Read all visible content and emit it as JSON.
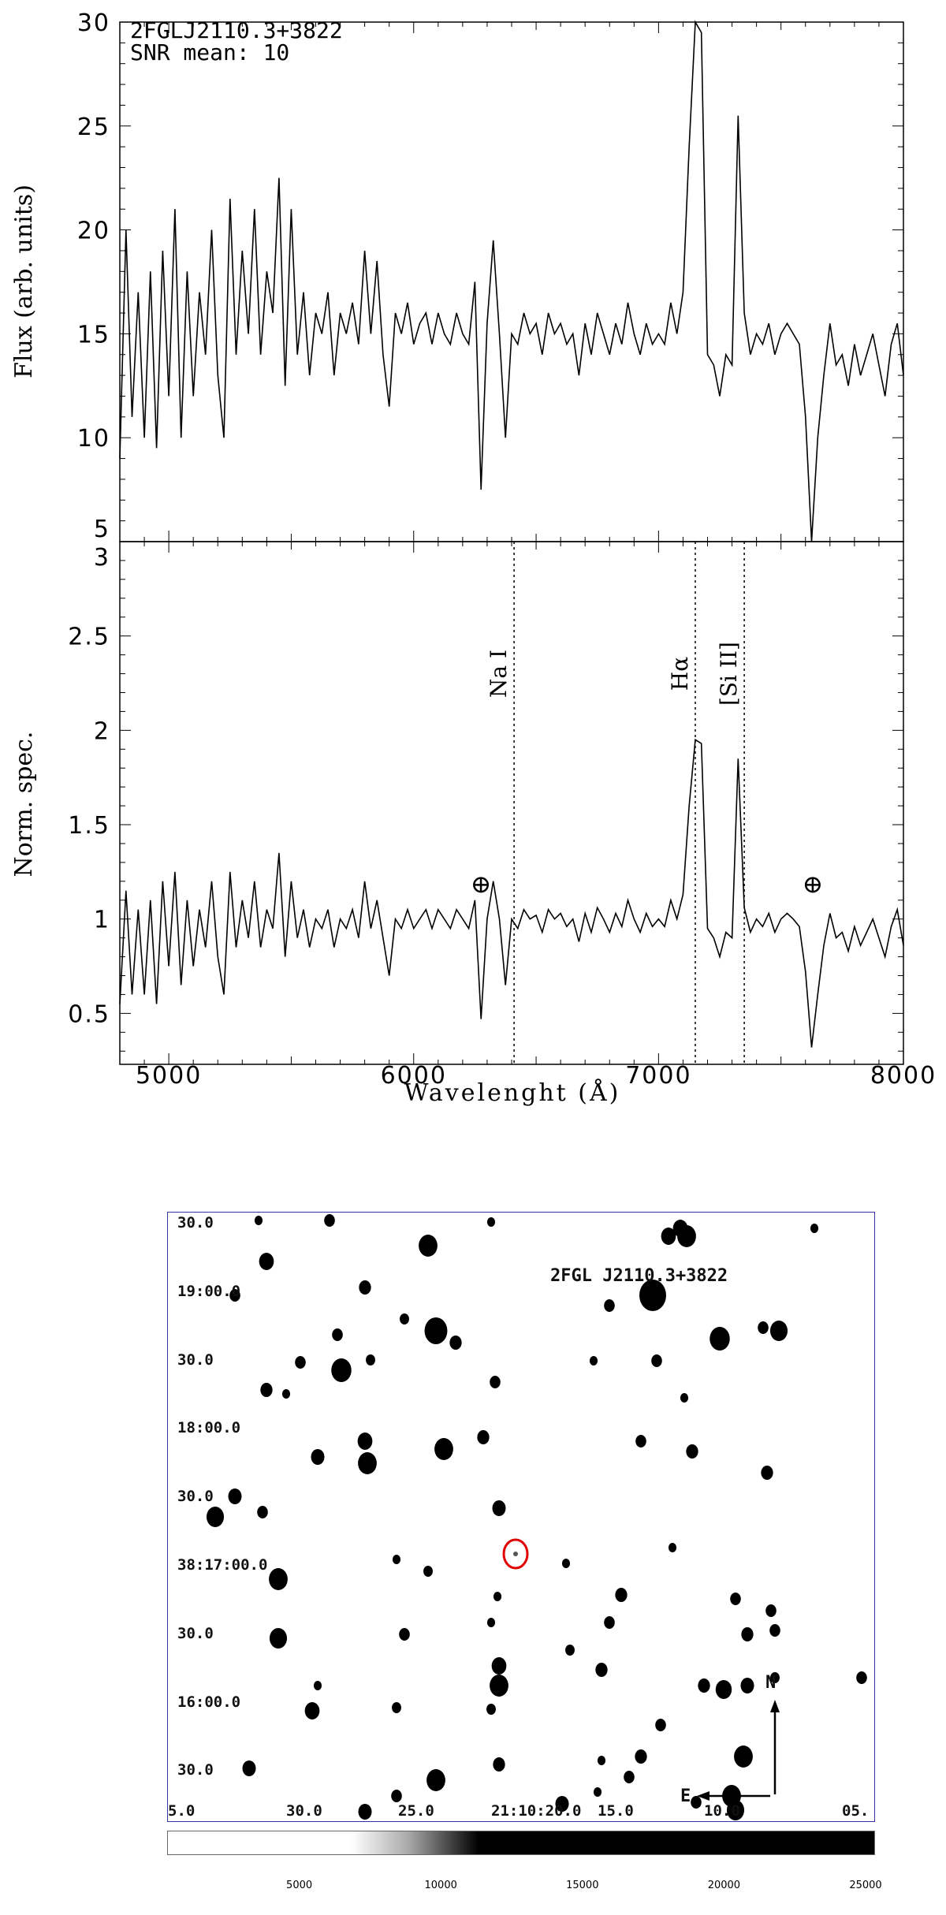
{
  "chart_data": [
    {
      "type": "line",
      "panel": "top",
      "annotations": [
        "2FGLJ2110.3+3822",
        "SNR mean: 10"
      ],
      "ylabel": "Flux (arb. units)",
      "xlabel": "",
      "xlim": [
        4800,
        8000
      ],
      "ylim": [
        5,
        30
      ],
      "yticks": [
        "5",
        "10",
        "15",
        "20",
        "25",
        "30"
      ],
      "x_start": 4800,
      "x_step": 25,
      "values": [
        9,
        20,
        11,
        17,
        10,
        18,
        9.5,
        19,
        12,
        21,
        10,
        18,
        12,
        17,
        14,
        20,
        13,
        10,
        21.5,
        14,
        19,
        15,
        21,
        14,
        18,
        16,
        22.5,
        12.5,
        21,
        14,
        17,
        13,
        16,
        15,
        17,
        13,
        16,
        15,
        16.5,
        14.5,
        19,
        15,
        18.5,
        14,
        11.5,
        16,
        15,
        16.5,
        14.5,
        15.5,
        16,
        14.5,
        16,
        15,
        14.5,
        16,
        15,
        14.5,
        17.5,
        7.5,
        15.5,
        19.5,
        15,
        10,
        15,
        14.5,
        16,
        15,
        15.5,
        14,
        16,
        15,
        15.5,
        14.5,
        15,
        13,
        15.5,
        14,
        16,
        15,
        14,
        15.5,
        14.5,
        16.5,
        15,
        14,
        15.5,
        14.5,
        15,
        14.5,
        16.5,
        15,
        17,
        24,
        30,
        29.5,
        14,
        13.5,
        12,
        14,
        13.5,
        25.5,
        16,
        14,
        15,
        14.5,
        15.5,
        14,
        15,
        15.5,
        15,
        14.5,
        11,
        5,
        10,
        13,
        15.5,
        13.5,
        14,
        12.5,
        14.5,
        13,
        14,
        15,
        13.5,
        12,
        14.5,
        15.5,
        13
      ]
    },
    {
      "type": "line",
      "panel": "bottom",
      "ylabel": "Norm. spec.",
      "xlabel": "Wavelenght (Å)",
      "xlim": [
        4800,
        8000
      ],
      "ylim": [
        0.23,
        3
      ],
      "xticks": [
        "5000",
        "6000",
        "7000",
        "8000"
      ],
      "yticks": [
        "0.5",
        "1",
        "1.5",
        "2",
        "2.5",
        "3"
      ],
      "x_start": 4800,
      "x_step": 25,
      "values": [
        0.55,
        1.15,
        0.6,
        1.05,
        0.6,
        1.1,
        0.55,
        1.2,
        0.75,
        1.25,
        0.65,
        1.1,
        0.75,
        1.05,
        0.85,
        1.2,
        0.8,
        0.6,
        1.25,
        0.85,
        1.1,
        0.9,
        1.2,
        0.85,
        1.05,
        0.95,
        1.35,
        0.8,
        1.2,
        0.9,
        1.05,
        0.85,
        1.0,
        0.95,
        1.05,
        0.85,
        1.0,
        0.95,
        1.05,
        0.9,
        1.2,
        0.95,
        1.1,
        0.9,
        0.7,
        1.0,
        0.95,
        1.05,
        0.95,
        1.0,
        1.05,
        0.95,
        1.05,
        1.0,
        0.95,
        1.05,
        1.0,
        0.95,
        1.1,
        0.47,
        1.0,
        1.2,
        1.0,
        0.65,
        1.0,
        0.95,
        1.05,
        1.0,
        1.02,
        0.93,
        1.05,
        1.0,
        1.03,
        0.96,
        1.0,
        0.88,
        1.03,
        0.93,
        1.06,
        1.0,
        0.93,
        1.03,
        0.96,
        1.1,
        1.0,
        0.93,
        1.03,
        0.96,
        1.0,
        0.96,
        1.1,
        1.0,
        1.13,
        1.6,
        1.95,
        1.93,
        0.95,
        0.9,
        0.8,
        0.93,
        0.9,
        1.85,
        1.06,
        0.93,
        1.0,
        0.96,
        1.03,
        0.93,
        1.0,
        1.03,
        1.0,
        0.96,
        0.72,
        0.32,
        0.6,
        0.86,
        1.03,
        0.9,
        0.93,
        0.83,
        0.96,
        0.86,
        0.93,
        1.0,
        0.9,
        0.8,
        0.96,
        1.05,
        0.86
      ],
      "lines": [
        {
          "label": "Na I",
          "wavelength": 6410
        },
        {
          "label": "Hα",
          "wavelength": 7150
        },
        {
          "label": "[Si II]",
          "wavelength": 7350
        }
      ],
      "telluric": [
        {
          "label": "⊕",
          "wavelength": 6275,
          "y": 1.18
        },
        {
          "label": "⊕",
          "wavelength": 7630,
          "y": 1.18
        }
      ]
    }
  ],
  "finder": {
    "target": "2FGL J2110.3+3822",
    "dec_labels": [
      "30.0",
      "19:00.0",
      "30.0",
      "18:00.0",
      "30.0",
      "38:17:00.0",
      "30.0",
      "16:00.0",
      "30.0"
    ],
    "ra_labels": [
      "5.0",
      "30.0",
      "25.0",
      "21:10:20.0",
      "15.0",
      "10.0",
      "05."
    ],
    "north": "N",
    "east": "E",
    "colorbar_ticks": [
      "5000",
      "10000",
      "15000",
      "20000",
      "25000"
    ],
    "colorbar_range": [
      0,
      25000
    ],
    "marker_color": "#e00000"
  }
}
